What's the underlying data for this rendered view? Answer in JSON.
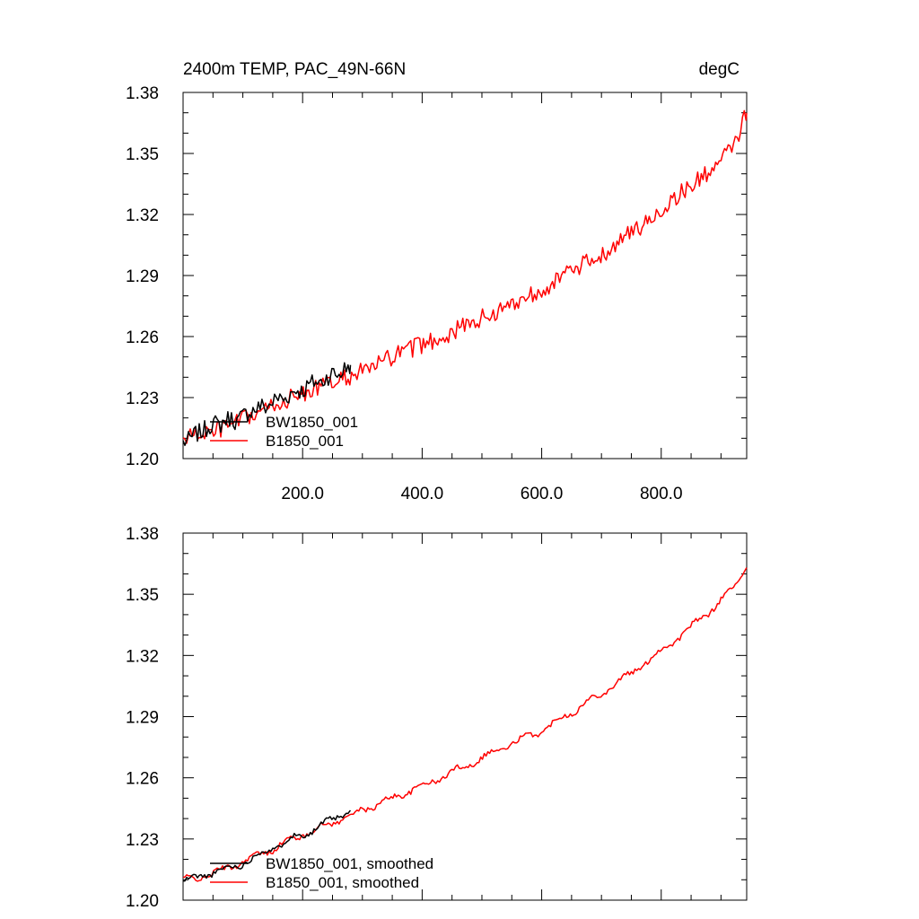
{
  "chart_data": [
    {
      "type": "line",
      "title": "2400m TEMP, PAC_49N-66N",
      "units": "degC",
      "xlim": [
        0,
        943
      ],
      "ylim": [
        1.2,
        1.38
      ],
      "xticks": [
        200,
        400,
        600,
        800
      ],
      "xtick_labels": [
        "200.0",
        "400.0",
        "600.0",
        "800.0"
      ],
      "yticks": [
        1.2,
        1.23,
        1.26,
        1.29,
        1.32,
        1.35,
        1.38
      ],
      "ytick_labels": [
        "1.20",
        "1.23",
        "1.26",
        "1.29",
        "1.32",
        "1.35",
        "1.38"
      ],
      "legend_position": "bottom-left",
      "series": [
        {
          "name": "BW1850_001",
          "color": "#000000",
          "x": [
            0,
            10,
            20,
            30,
            40,
            50,
            60,
            70,
            80,
            90,
            100,
            110,
            120,
            130,
            140,
            150,
            160,
            170,
            180,
            190,
            200,
            210,
            220,
            230,
            240,
            250,
            260,
            270,
            280
          ],
          "y": [
            1.208,
            1.209,
            1.212,
            1.213,
            1.215,
            1.218,
            1.216,
            1.219,
            1.22,
            1.218,
            1.221,
            1.223,
            1.224,
            1.226,
            1.225,
            1.228,
            1.23,
            1.229,
            1.232,
            1.234,
            1.233,
            1.236,
            1.238,
            1.237,
            1.24,
            1.242,
            1.241,
            1.244,
            1.246
          ]
        },
        {
          "name": "B1850_001",
          "color": "#ff0000",
          "x": [
            0,
            25,
            50,
            75,
            100,
            125,
            150,
            175,
            200,
            225,
            250,
            275,
            300,
            325,
            350,
            375,
            400,
            425,
            450,
            475,
            500,
            525,
            550,
            575,
            600,
            625,
            650,
            675,
            700,
            725,
            750,
            775,
            800,
            825,
            850,
            875,
            900,
            925,
            943
          ],
          "y": [
            1.21,
            1.212,
            1.213,
            1.216,
            1.219,
            1.222,
            1.226,
            1.229,
            1.232,
            1.235,
            1.237,
            1.24,
            1.243,
            1.246,
            1.25,
            1.253,
            1.256,
            1.259,
            1.262,
            1.266,
            1.269,
            1.272,
            1.276,
            1.28,
            1.283,
            1.288,
            1.292,
            1.296,
            1.3,
            1.306,
            1.311,
            1.316,
            1.322,
            1.329,
            1.334,
            1.34,
            1.346,
            1.356,
            1.37
          ]
        }
      ]
    },
    {
      "type": "line",
      "xlim": [
        0,
        943
      ],
      "ylim": [
        1.2,
        1.38
      ],
      "xticks": [
        200,
        400,
        600,
        800
      ],
      "yticks": [
        1.2,
        1.23,
        1.26,
        1.29,
        1.32,
        1.35,
        1.38
      ],
      "ytick_labels": [
        "1.20",
        "1.23",
        "1.26",
        "1.29",
        "1.32",
        "1.35",
        "1.38"
      ],
      "legend_position": "bottom-left",
      "series": [
        {
          "name": "BW1850_001, smoothed",
          "color": "#000000",
          "x": [
            0,
            20,
            40,
            60,
            80,
            100,
            120,
            140,
            160,
            180,
            200,
            220,
            240,
            260,
            280
          ],
          "y": [
            1.209,
            1.211,
            1.213,
            1.214,
            1.216,
            1.218,
            1.221,
            1.224,
            1.227,
            1.23,
            1.232,
            1.235,
            1.238,
            1.241,
            1.244
          ]
        },
        {
          "name": "B1850_001, smoothed",
          "color": "#ff0000",
          "x": [
            0,
            25,
            50,
            75,
            100,
            125,
            150,
            175,
            200,
            225,
            250,
            275,
            300,
            325,
            350,
            375,
            400,
            425,
            450,
            475,
            500,
            525,
            550,
            575,
            600,
            625,
            650,
            675,
            700,
            725,
            750,
            775,
            800,
            825,
            850,
            875,
            900,
            925,
            943
          ],
          "y": [
            1.21,
            1.211,
            1.213,
            1.216,
            1.219,
            1.222,
            1.225,
            1.229,
            1.232,
            1.235,
            1.238,
            1.241,
            1.244,
            1.247,
            1.25,
            1.253,
            1.256,
            1.259,
            1.263,
            1.266,
            1.27,
            1.273,
            1.277,
            1.28,
            1.283,
            1.288,
            1.292,
            1.297,
            1.301,
            1.307,
            1.311,
            1.317,
            1.322,
            1.328,
            1.334,
            1.34,
            1.347,
            1.355,
            1.363
          ]
        }
      ]
    }
  ]
}
